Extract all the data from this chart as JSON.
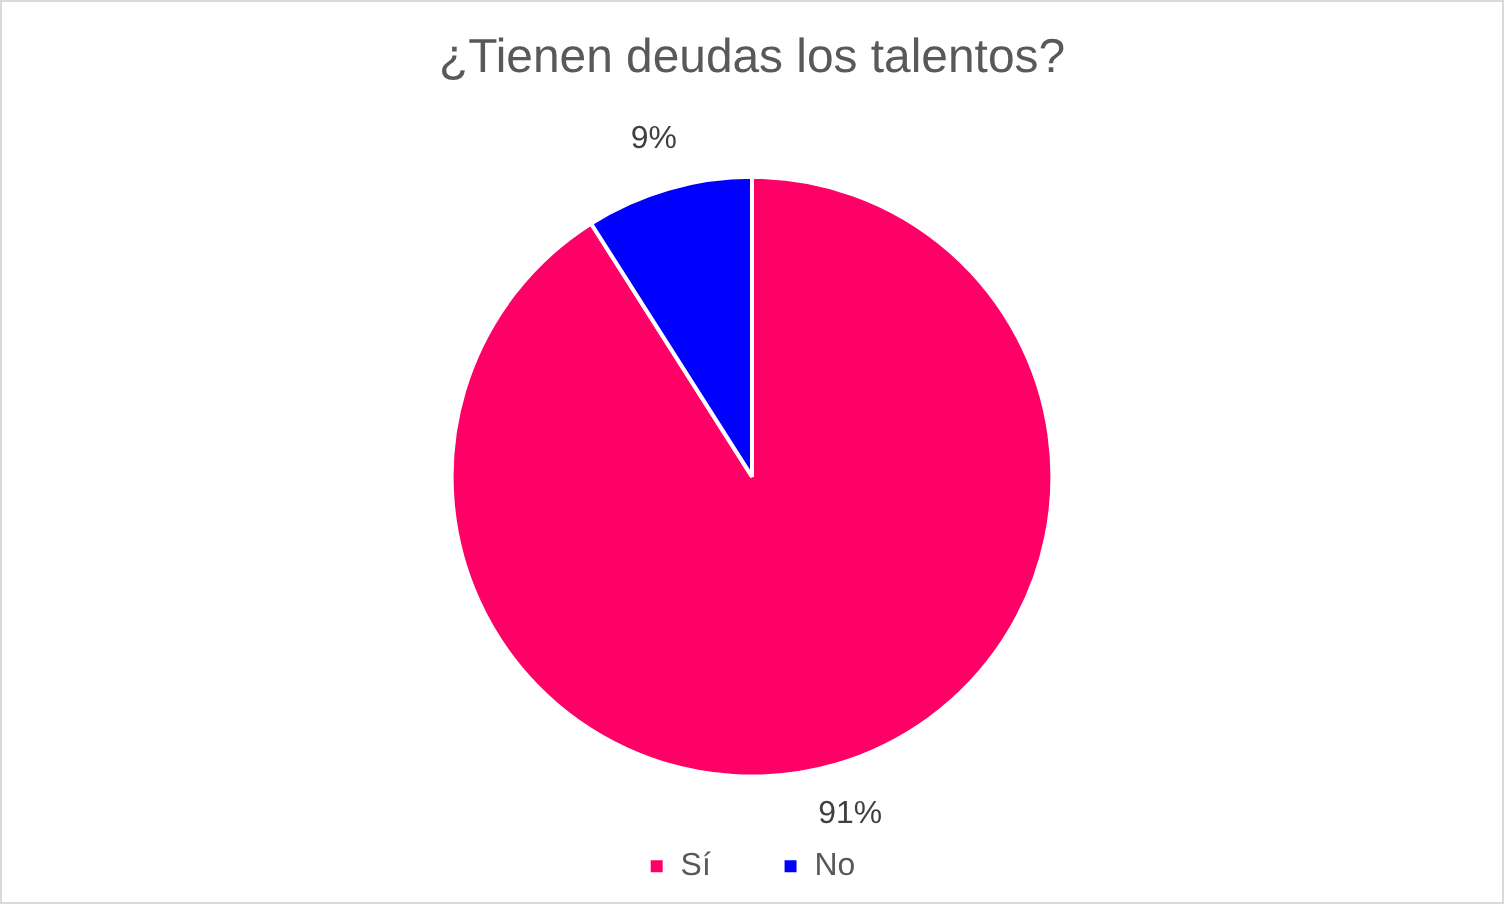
{
  "chart_data": {
    "type": "pie",
    "title": "¿Tienen deudas los talentos?",
    "categories": [
      "Sí",
      "No"
    ],
    "values": [
      91,
      9
    ],
    "colors": [
      "#ff0066",
      "#0000ff"
    ],
    "value_labels": [
      "91%",
      "9%"
    ],
    "legend": "bottom"
  }
}
